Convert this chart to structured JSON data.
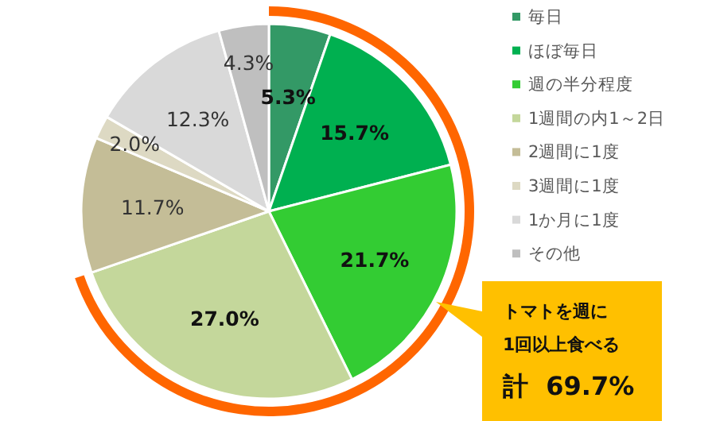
{
  "chart_data": {
    "type": "pie",
    "categories": [
      "毎日",
      "ほぼ毎日",
      "週の半分程度",
      "1週間の内1～2日",
      "2週間に1度",
      "3週間に1度",
      "1か月に1度",
      "その他"
    ],
    "values": [
      5.3,
      15.7,
      21.7,
      27.0,
      11.7,
      2.0,
      12.3,
      4.3
    ],
    "value_labels": [
      "5.3%",
      "15.7%",
      "21.7%",
      "27.0%",
      "11.7%",
      "2.0%",
      "12.3%",
      "4.3%"
    ],
    "colors": [
      "#339966",
      "#00b050",
      "#33cc33",
      "#c4d79b",
      "#c4bd97",
      "#ddd9c3",
      "#d9d9d9",
      "#bfbfbf"
    ],
    "legend": "right",
    "annotations": [
      "トマトを週に",
      "1回以上食べる",
      "計  69.7%"
    ]
  }
}
